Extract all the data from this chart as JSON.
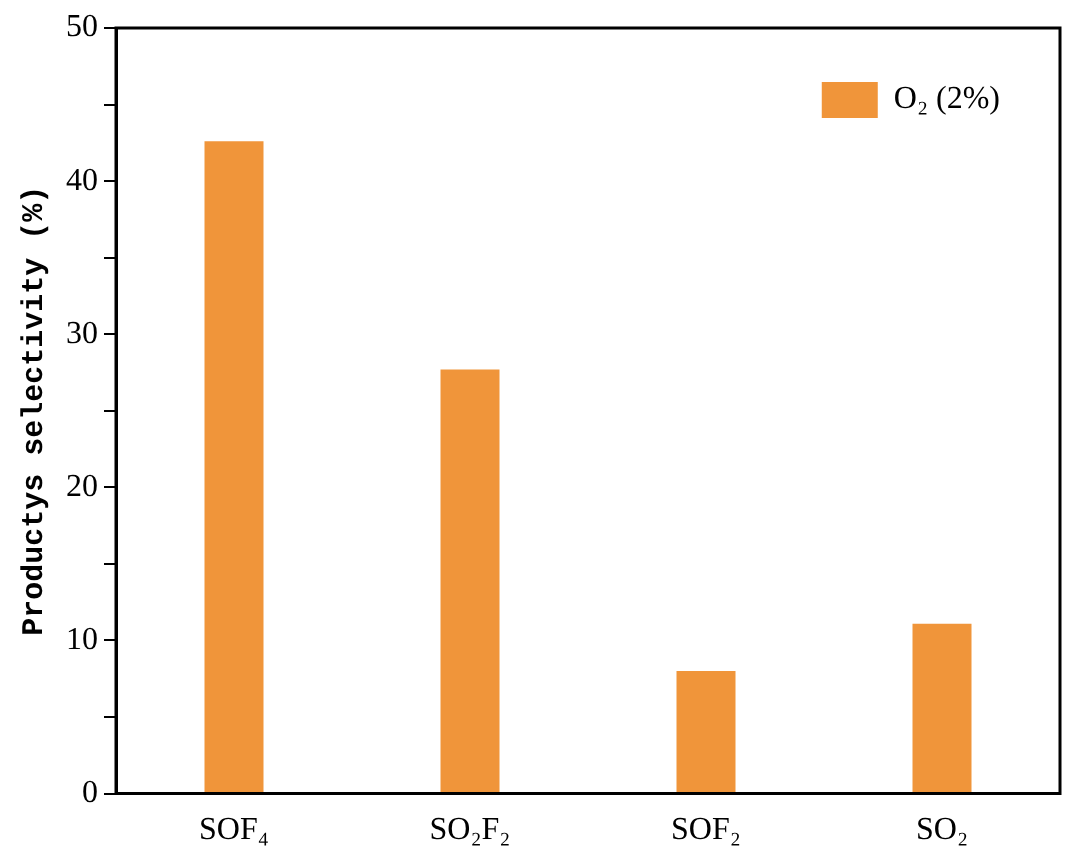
{
  "chart_data": {
    "type": "bar",
    "ylabel": "Productys selectivity (%)",
    "categories": [
      "SOF₄",
      "SO₂F₂",
      "SOF₂",
      "SO₂"
    ],
    "series": [
      {
        "name": "O₂ (2%)",
        "color": "#f0953a",
        "values": [
          42.6,
          27.7,
          8.0,
          11.1
        ]
      }
    ],
    "ylim": [
      0,
      50
    ],
    "yticks": [
      0,
      {
        "value": 5,
        "label": null
      },
      10,
      {
        "value": 15,
        "label": null
      },
      20,
      {
        "value": 25,
        "label": null
      },
      30,
      {
        "value": 35,
        "label": null
      },
      40,
      {
        "value": 45,
        "label": null
      },
      50
    ],
    "grid": false,
    "legend": "top right"
  }
}
